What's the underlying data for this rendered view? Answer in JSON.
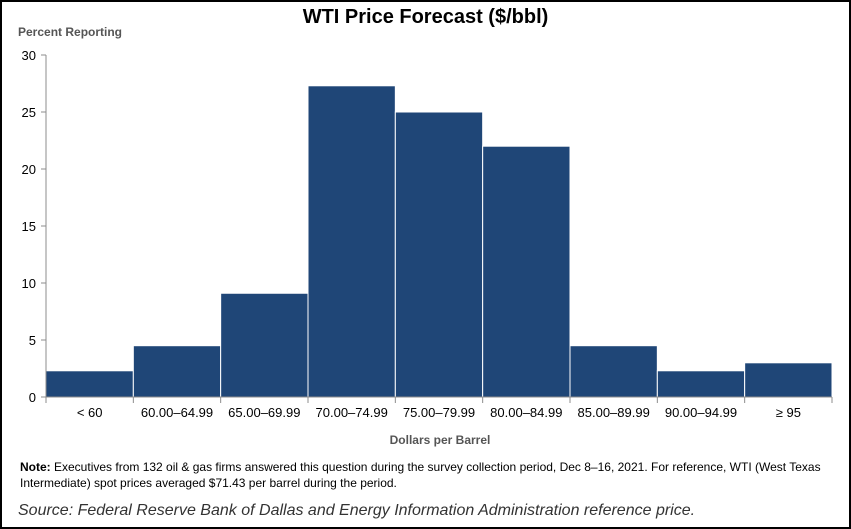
{
  "chart_data": {
    "type": "bar",
    "title": "WTI Price Forecast ($/bbl)",
    "ylabel": "Percent Reporting",
    "xlabel": "Dollars per Barrel",
    "categories": [
      "< 60",
      "60.00–64.99",
      "65.00–69.99",
      "70.00–74.99",
      "75.00–79.99",
      "80.00–84.99",
      "85.00–89.99",
      "90.00–94.99",
      "≥ 95"
    ],
    "values": [
      2.3,
      4.5,
      9.1,
      27.3,
      25.0,
      22.0,
      4.5,
      2.3,
      3.0
    ],
    "ylim": [
      0,
      30
    ],
    "yticks": [
      0,
      5,
      10,
      15,
      20,
      25,
      30
    ],
    "grid": false,
    "bar_color": "#1f4677"
  },
  "note": {
    "label": "Note:",
    "text": " Executives from 132 oil & gas firms answered this question during the survey collection period, Dec 8–16, 2021. For reference, WTI (West Texas Intermediate) spot prices averaged $71.43 per barrel during the period."
  },
  "source": "Source: Federal Reserve Bank of Dallas and Energy Information Administration reference price."
}
